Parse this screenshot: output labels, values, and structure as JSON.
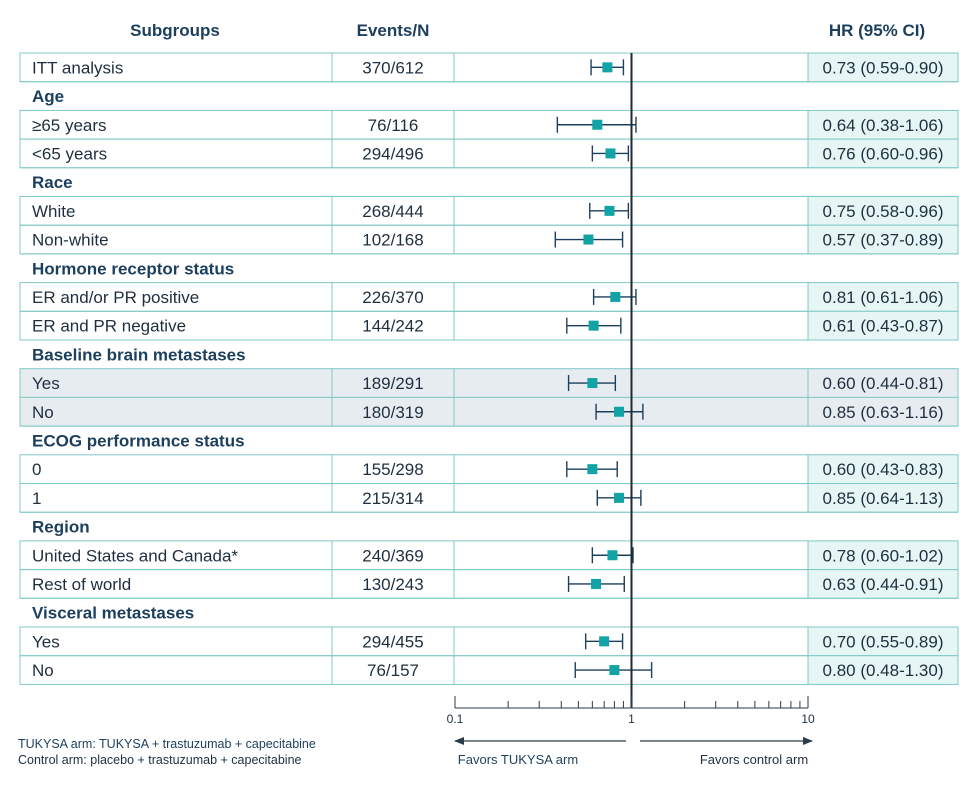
{
  "headers": {
    "subgroups": "Subgroups",
    "events": "Events/N",
    "hr": "HR (95% CI)"
  },
  "colors": {
    "accent_teal": "#12a3a6",
    "line_navy": "#1c3f5e",
    "hr_cell_bg": "#e6f6f5",
    "highlight_bg": "#e7ecf1",
    "row_border": "#7fc8c6"
  },
  "chart_data": {
    "type": "forest",
    "x_scale": "log",
    "xlim": [
      0.1,
      10
    ],
    "reference_line": 1,
    "x_ticks": [
      "0.1",
      "1",
      "10"
    ],
    "rows": [
      {
        "kind": "data",
        "label": "ITT analysis",
        "events": "370/612",
        "hr_text": "0.73 (0.59-0.90)",
        "hr": 0.73,
        "lo": 0.59,
        "hi": 0.9,
        "highlight": false
      },
      {
        "kind": "group",
        "label": "Age"
      },
      {
        "kind": "data",
        "label": "≥65 years",
        "events": "76/116",
        "hr_text": "0.64 (0.38-1.06)",
        "hr": 0.64,
        "lo": 0.38,
        "hi": 1.06,
        "highlight": false
      },
      {
        "kind": "data",
        "label": "<65 years",
        "events": "294/496",
        "hr_text": "0.76 (0.60-0.96)",
        "hr": 0.76,
        "lo": 0.6,
        "hi": 0.96,
        "highlight": false
      },
      {
        "kind": "group",
        "label": "Race"
      },
      {
        "kind": "data",
        "label": "White",
        "events": "268/444",
        "hr_text": "0.75 (0.58-0.96)",
        "hr": 0.75,
        "lo": 0.58,
        "hi": 0.96,
        "highlight": false
      },
      {
        "kind": "data",
        "label": "Non-white",
        "events": "102/168",
        "hr_text": "0.57 (0.37-0.89)",
        "hr": 0.57,
        "lo": 0.37,
        "hi": 0.89,
        "highlight": false
      },
      {
        "kind": "group",
        "label": "Hormone receptor status"
      },
      {
        "kind": "data",
        "label": "ER and/or PR positive",
        "events": "226/370",
        "hr_text": "0.81 (0.61-1.06)",
        "hr": 0.81,
        "lo": 0.61,
        "hi": 1.06,
        "highlight": false
      },
      {
        "kind": "data",
        "label": "ER and PR negative",
        "events": "144/242",
        "hr_text": "0.61 (0.43-0.87)",
        "hr": 0.61,
        "lo": 0.43,
        "hi": 0.87,
        "highlight": false
      },
      {
        "kind": "group",
        "label": "Baseline brain metastases"
      },
      {
        "kind": "data",
        "label": "Yes",
        "events": "189/291",
        "hr_text": "0.60 (0.44-0.81)",
        "hr": 0.6,
        "lo": 0.44,
        "hi": 0.81,
        "highlight": true
      },
      {
        "kind": "data",
        "label": "No",
        "events": "180/319",
        "hr_text": "0.85 (0.63-1.16)",
        "hr": 0.85,
        "lo": 0.63,
        "hi": 1.16,
        "highlight": true
      },
      {
        "kind": "group",
        "label": "ECOG performance status"
      },
      {
        "kind": "data",
        "label": "0",
        "events": "155/298",
        "hr_text": "0.60 (0.43-0.83)",
        "hr": 0.6,
        "lo": 0.43,
        "hi": 0.83,
        "highlight": false
      },
      {
        "kind": "data",
        "label": "1",
        "events": "215/314",
        "hr_text": "0.85 (0.64-1.13)",
        "hr": 0.85,
        "lo": 0.64,
        "hi": 1.13,
        "highlight": false
      },
      {
        "kind": "group",
        "label": "Region"
      },
      {
        "kind": "data",
        "label": "United States and Canada*",
        "events": "240/369",
        "hr_text": "0.78 (0.60-1.02)",
        "hr": 0.78,
        "lo": 0.6,
        "hi": 1.02,
        "highlight": false
      },
      {
        "kind": "data",
        "label": "Rest of world",
        "events": "130/243",
        "hr_text": "0.63 (0.44-0.91)",
        "hr": 0.63,
        "lo": 0.44,
        "hi": 0.91,
        "highlight": false
      },
      {
        "kind": "group",
        "label": "Visceral metastases"
      },
      {
        "kind": "data",
        "label": "Yes",
        "events": "294/455",
        "hr_text": "0.70 (0.55-0.89)",
        "hr": 0.7,
        "lo": 0.55,
        "hi": 0.89,
        "highlight": false
      },
      {
        "kind": "data",
        "label": "No",
        "events": "76/157",
        "hr_text": "0.80 (0.48-1.30)",
        "hr": 0.8,
        "lo": 0.48,
        "hi": 1.3,
        "highlight": false
      }
    ]
  },
  "footnotes": {
    "tukysa_arm": "TUKYSA arm: TUKYSA + trastuzumab + capecitabine",
    "control_arm": "Control arm: placebo + trastuzumab + capecitabine"
  },
  "favors": {
    "left": "Favors TUKYSA arm",
    "right": "Favors control arm"
  }
}
